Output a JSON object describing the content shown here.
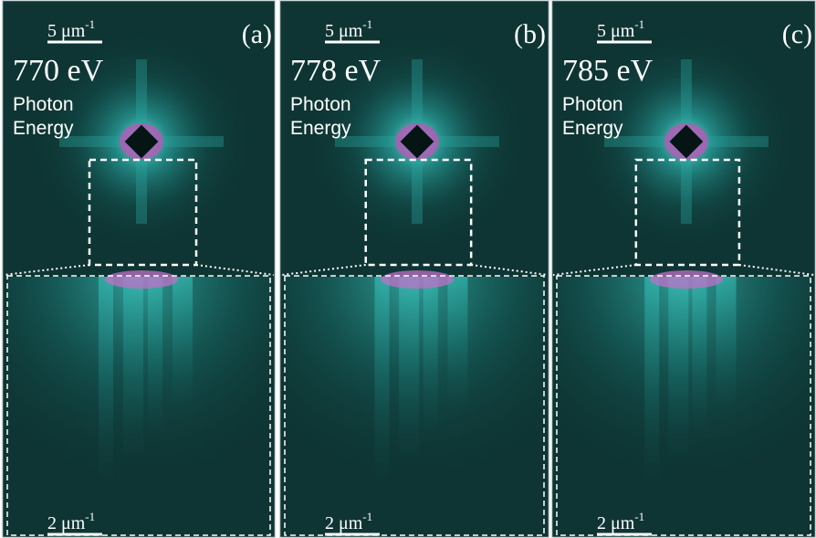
{
  "panels": [
    {
      "label": "(a)",
      "energy": "770 eV",
      "caption": [
        "Photon",
        "Energy"
      ],
      "top_scale": {
        "number": "5 μm",
        "exponent": "-1"
      },
      "bottom_scale": {
        "number": "2 μm",
        "exponent": "-1"
      }
    },
    {
      "label": "(b)",
      "energy": "778 eV",
      "caption": [
        "Photon",
        "Energy"
      ],
      "top_scale": {
        "number": "5 μm",
        "exponent": "-1"
      },
      "bottom_scale": {
        "number": "2 μm",
        "exponent": "-1"
      }
    },
    {
      "label": "(c)",
      "energy": "785 eV",
      "caption": [
        "Photon",
        "Energy"
      ],
      "top_scale": {
        "number": "5 μm",
        "exponent": "-1"
      },
      "bottom_scale": {
        "number": "2 μm",
        "exponent": "-1"
      }
    }
  ]
}
